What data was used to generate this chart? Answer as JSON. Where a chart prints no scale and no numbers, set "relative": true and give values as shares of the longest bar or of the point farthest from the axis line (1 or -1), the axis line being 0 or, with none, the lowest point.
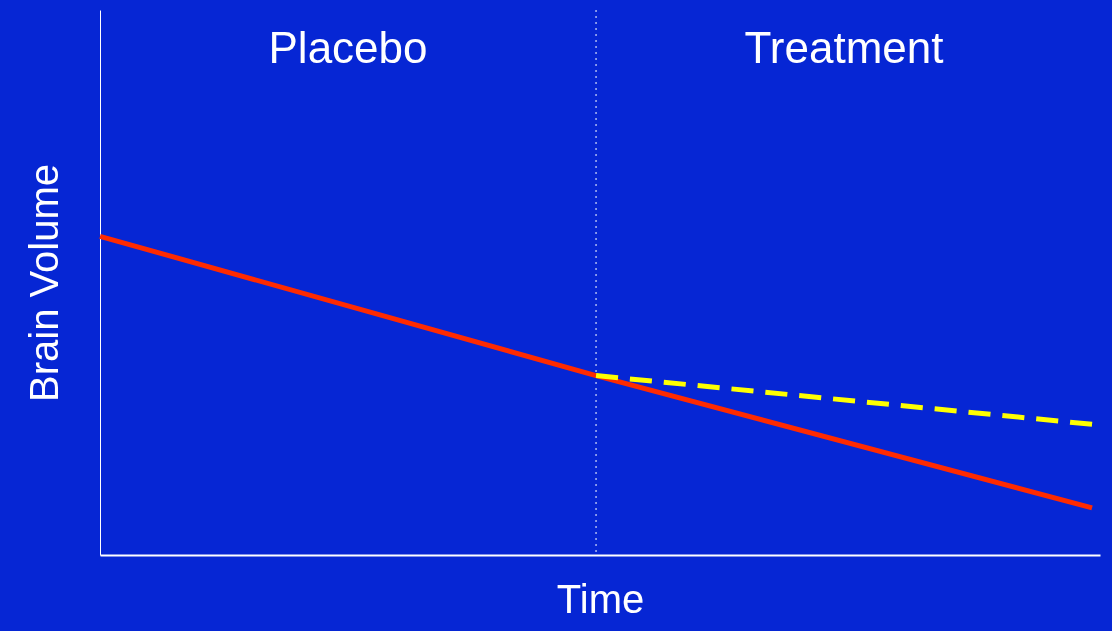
{
  "chart_data": {
    "type": "line",
    "relative": true,
    "xlabel": "Time",
    "ylabel": "Brain Volume",
    "categories": [
      null,
      null,
      null
    ],
    "series": [
      {
        "color": "#ff2a00",
        "values": [
          1,
          0.563,
          0.148
        ],
        "line_style": "solid"
      },
      {
        "color": "#ffff00",
        "values": [
          null,
          0.563,
          0.41
        ],
        "line_style": "dashed"
      }
    ],
    "annotations": [
      "Placebo",
      "Treatment"
    ],
    "tick_labels": false,
    "grid": false,
    "marker": "none"
  }
}
